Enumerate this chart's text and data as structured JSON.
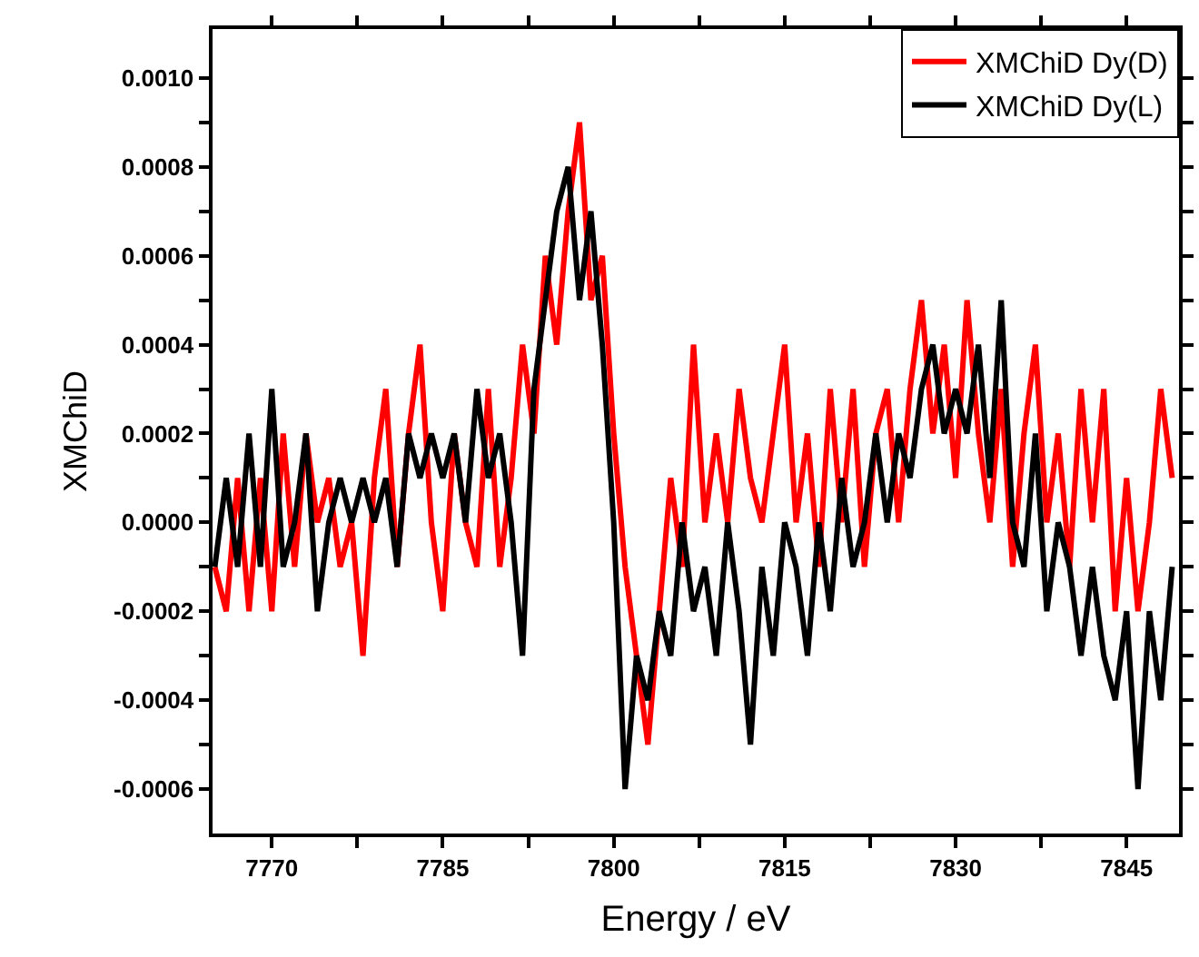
{
  "chart_data": {
    "type": "line",
    "xlabel": "Energy / eV",
    "ylabel": "XMChiD",
    "x": [
      7765,
      7766,
      7767,
      7768,
      7769,
      7770,
      7771,
      7772,
      7773,
      7774,
      7775,
      7776,
      7777,
      7778,
      7779,
      7780,
      7781,
      7782,
      7783,
      7784,
      7785,
      7786,
      7787,
      7788,
      7789,
      7790,
      7791,
      7792,
      7793,
      7794,
      7795,
      7796,
      7797,
      7798,
      7799,
      7800,
      7801,
      7802,
      7803,
      7804,
      7805,
      7806,
      7807,
      7808,
      7809,
      7810,
      7811,
      7812,
      7813,
      7814,
      7815,
      7816,
      7817,
      7818,
      7819,
      7820,
      7821,
      7822,
      7823,
      7824,
      7825,
      7826,
      7827,
      7828,
      7829,
      7830,
      7831,
      7832,
      7833,
      7834,
      7835,
      7836,
      7837,
      7838,
      7839,
      7840,
      7841,
      7842,
      7843,
      7844,
      7845,
      7846,
      7847,
      7848,
      7849
    ],
    "series": [
      {
        "name": "XMChiD Dy(D)",
        "color": "#ff0000",
        "values": [
          -0.0001,
          -0.0002,
          0.0001,
          -0.0002,
          0.0001,
          -0.0002,
          0.0002,
          -0.0001,
          0.0002,
          0.0,
          0.0001,
          -0.0001,
          0.0,
          -0.0003,
          0.0001,
          0.0003,
          -0.0001,
          0.0002,
          0.0004,
          0.0,
          -0.0002,
          0.0002,
          0.0,
          -0.0001,
          0.0003,
          -0.0001,
          0.0001,
          0.0004,
          0.0002,
          0.0006,
          0.0004,
          0.0007,
          0.0009,
          0.0005,
          0.0006,
          0.0002,
          -0.0001,
          -0.0003,
          -0.0005,
          -0.0002,
          0.0001,
          -0.0001,
          0.0004,
          0.0,
          0.0002,
          0.0,
          0.0003,
          0.0001,
          0.0,
          0.0002,
          0.0004,
          0.0,
          0.0002,
          -0.0001,
          0.0003,
          0.0,
          0.0003,
          -0.0001,
          0.0002,
          0.0003,
          0.0,
          0.0003,
          0.0005,
          0.0002,
          0.0004,
          0.0001,
          0.0005,
          0.0002,
          0.0,
          0.0003,
          -0.0001,
          0.0002,
          0.0004,
          0.0,
          0.0002,
          -0.0001,
          0.0003,
          0.0,
          0.0003,
          -0.0002,
          0.0001,
          -0.0002,
          0.0,
          0.0003,
          0.0001
        ]
      },
      {
        "name": "XMChiD Dy(L)",
        "color": "#000000",
        "values": [
          -0.0001,
          0.0001,
          -0.0001,
          0.0002,
          -0.0001,
          0.0003,
          -0.0001,
          0.0,
          0.0002,
          -0.0002,
          0.0,
          0.0001,
          0.0,
          0.0001,
          0.0,
          0.0001,
          -0.0001,
          0.0002,
          0.0001,
          0.0002,
          0.0001,
          0.0002,
          0.0,
          0.0003,
          0.0001,
          0.0002,
          0.0,
          -0.0003,
          0.0003,
          0.0005,
          0.0007,
          0.0008,
          0.0005,
          0.0007,
          0.0004,
          0.0,
          -0.0006,
          -0.0003,
          -0.0004,
          -0.0002,
          -0.0003,
          0.0,
          -0.0002,
          -0.0001,
          -0.0003,
          0.0,
          -0.0002,
          -0.0005,
          -0.0001,
          -0.0003,
          0.0,
          -0.0001,
          -0.0003,
          0.0,
          -0.0002,
          0.0001,
          -0.0001,
          0.0,
          0.0002,
          0.0,
          0.0002,
          0.0001,
          0.0003,
          0.0004,
          0.0002,
          0.0003,
          0.0002,
          0.0004,
          0.0001,
          0.0005,
          0.0,
          -0.0001,
          0.0002,
          -0.0002,
          0.0,
          -0.0001,
          -0.0003,
          -0.0001,
          -0.0003,
          -0.0004,
          -0.0002,
          -0.0006,
          -0.0002,
          -0.0004,
          -0.0001
        ]
      }
    ],
    "xlim": [
      7764.8,
      7849.6
    ],
    "xticks": [
      7770,
      {
        "value": 7777.5,
        "label": null
      },
      7785,
      {
        "value": 7792.5,
        "label": null
      },
      7800,
      {
        "value": 7807.5,
        "label": null
      },
      7815,
      {
        "value": 7822.5,
        "label": null
      },
      7830,
      {
        "value": 7837.5,
        "label": null
      },
      7845
    ],
    "ylim": [
      -0.0007,
      0.00111
    ],
    "yticks": [
      {
        "value": -0.0006,
        "label": "-0.0006"
      },
      {
        "value": -0.0005,
        "label": null
      },
      {
        "value": -0.0004,
        "label": "-0.0004"
      },
      {
        "value": -0.0003,
        "label": null
      },
      {
        "value": -0.0002,
        "label": "-0.0002"
      },
      {
        "value": -0.0001,
        "label": null
      },
      {
        "value": 0,
        "label": "0.0000"
      },
      {
        "value": 0.0001,
        "label": null
      },
      {
        "value": 0.0002,
        "label": "0.0002"
      },
      {
        "value": 0.0003,
        "label": null
      },
      {
        "value": 0.0004,
        "label": "0.0004"
      },
      {
        "value": 0.0005,
        "label": null
      },
      {
        "value": 0.0006,
        "label": "0.0006"
      },
      {
        "value": 0.0007,
        "label": null
      },
      {
        "value": 0.0008,
        "label": "0.0008"
      },
      {
        "value": 0.0009,
        "label": null
      },
      {
        "value": 0.001,
        "label": "0.0010"
      }
    ],
    "legend": "top right",
    "marker": "none",
    "line_style": "solid"
  }
}
